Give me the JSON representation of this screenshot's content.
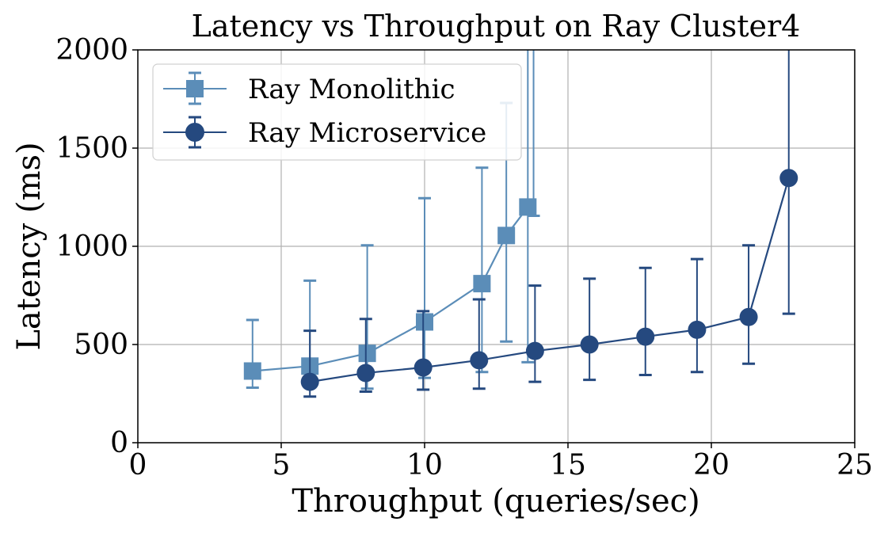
{
  "chart_data": {
    "type": "line",
    "title": "Latency vs Throughput on Ray Cluster4",
    "xlabel": "Throughput (queries/sec)",
    "ylabel": "Latency (ms)",
    "xlim": [
      0,
      25
    ],
    "ylim": [
      0,
      2000
    ],
    "xticks": [
      0,
      5,
      10,
      15,
      20,
      25
    ],
    "yticks": [
      0,
      500,
      1000,
      1500,
      2000
    ],
    "grid": true,
    "legend_position": "top-left",
    "series": [
      {
        "name": "Ray Monolithic",
        "marker": "square",
        "color": "#5b8db8",
        "x": [
          4.0,
          6.0,
          8.0,
          10.0,
          12.0,
          12.85,
          13.6
        ],
        "y": [
          365,
          390,
          455,
          615,
          810,
          1055,
          1200
        ],
        "err_low": [
          280,
          315,
          275,
          330,
          360,
          515,
          410
        ],
        "err_high": [
          625,
          825,
          1005,
          1245,
          1400,
          1730,
          2000
        ]
      },
      {
        "name": "Ray Microservice",
        "marker": "circle",
        "color": "#25497f",
        "x": [
          6.0,
          7.95,
          9.95,
          11.9,
          13.85,
          15.75,
          17.7,
          19.5,
          21.3,
          22.7
        ],
        "y": [
          310,
          355,
          383,
          420,
          467,
          500,
          540,
          575,
          640,
          1348
        ],
        "err_low": [
          235,
          260,
          270,
          275,
          310,
          320,
          345,
          360,
          402,
          657
        ],
        "err_high": [
          570,
          630,
          670,
          730,
          800,
          835,
          890,
          935,
          1005,
          2000
        ]
      }
    ],
    "extra_lines": [
      {
        "series": "Ray Monolithic",
        "description": "vertical line at x=13.8 extending past the top of the axis",
        "x": 13.8,
        "y_from": 1155,
        "y_to": 2000
      }
    ]
  }
}
